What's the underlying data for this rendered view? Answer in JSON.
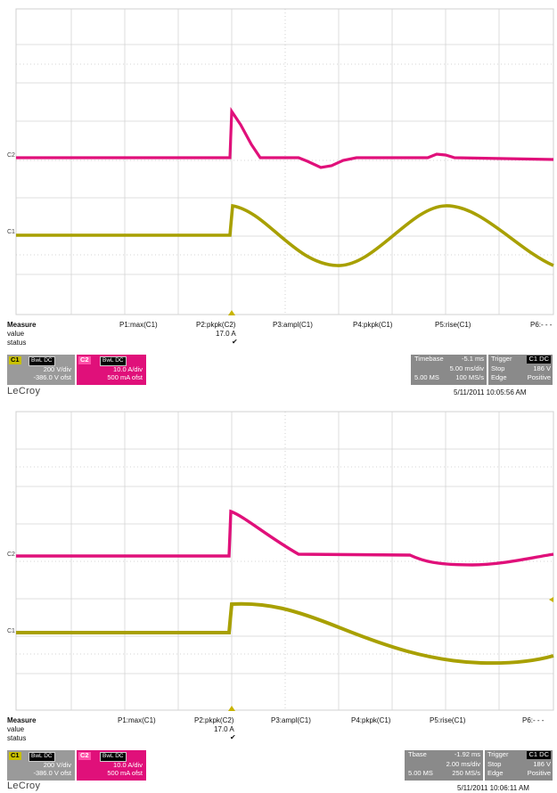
{
  "screens": [
    {
      "measure": {
        "header": "Measure",
        "row_labels": [
          "value",
          "status"
        ],
        "params": [
          "P1:max(C1)",
          "P2:pkpk(C2)",
          "P3:ampl(C1)",
          "P4:pkpk(C1)",
          "P5:rise(C1)",
          "P6:- - -"
        ],
        "p2_value": "17.0 A",
        "p2_status": "✔"
      },
      "channels": [
        {
          "tag": "C1",
          "coupling": "BwL DC",
          "vdiv": "200 V/div",
          "offset": "-386.0 V ofst"
        },
        {
          "tag": "C2",
          "coupling": "BwL DC",
          "vdiv": "10.0 A/div",
          "offset": "500 mA ofst"
        }
      ],
      "timebase": {
        "label": "Timebase",
        "delay": "-5.1 ms",
        "tdiv": "5.00 ms/div",
        "samples": "5.00 MS",
        "rate": "100 MS/s"
      },
      "trigger": {
        "label": "Trigger",
        "channel": "C1 DC",
        "mode": "Stop",
        "level": "186 V",
        "type": "Edge",
        "slope": "Positive"
      },
      "logo": "LeCroy",
      "timestamp": "5/11/2011 10:05:56 AM"
    },
    {
      "measure": {
        "header": "Measure",
        "row_labels": [
          "value",
          "status"
        ],
        "params": [
          "P1:max(C1)",
          "P2:pkpk(C2)",
          "P3:ampl(C1)",
          "P4:pkpk(C1)",
          "P5:rise(C1)",
          "P6:- - -"
        ],
        "p2_value": "17.0 A",
        "p2_status": "✔"
      },
      "channels": [
        {
          "tag": "C1",
          "coupling": "BwL DC",
          "vdiv": "200 V/div",
          "offset": "-386.0 V ofst"
        },
        {
          "tag": "C2",
          "coupling": "BwL DC",
          "vdiv": "10.0 A/div",
          "offset": "500 mA ofst"
        }
      ],
      "timebase": {
        "label": "Tbase",
        "delay": "-1.92 ms",
        "tdiv": "2.00 ms/div",
        "samples": "5.00 MS",
        "rate": "250 MS/s"
      },
      "trigger": {
        "label": "Trigger",
        "channel": "C1 DC",
        "mode": "Stop",
        "level": "186 V",
        "type": "Edge",
        "slope": "Positive"
      },
      "logo": "LeCroy",
      "timestamp": "5/11/2011 10:06:11 AM"
    }
  ],
  "colors": {
    "c1": "#a8a000",
    "c2": "#e0107a",
    "panel_gray": "#8a8a8a",
    "grid": "#c8c8c8"
  }
}
